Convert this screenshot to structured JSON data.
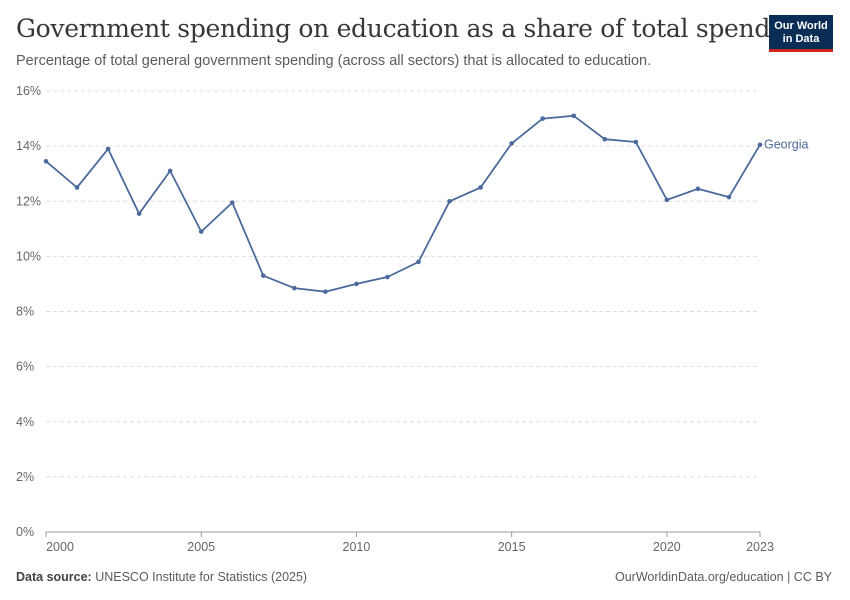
{
  "header": {
    "title": "Government spending on education as a share of total spending",
    "subtitle": "Percentage of total general government spending (across all sectors) that is allocated to education.",
    "logo_line1": "Our World",
    "logo_line2": "in Data"
  },
  "footer": {
    "source_label": "Data source:",
    "source_text": " UNESCO Institute for Statistics (2025)",
    "right_text": "OurWorldinData.org/education | CC BY"
  },
  "colors": {
    "series": "#4c6a9c",
    "grid": "#dddddd",
    "axis_text": "#666666",
    "logo_bg": "#0a2d55",
    "logo_accent": "#ce261e"
  },
  "chart_data": {
    "type": "line",
    "title": "Government spending on education as a share of total spending",
    "xlabel": "",
    "ylabel": "",
    "xlim": [
      2000,
      2023
    ],
    "ylim": [
      0,
      16
    ],
    "yticks": [
      0,
      2,
      4,
      6,
      8,
      10,
      12,
      14,
      16
    ],
    "ytick_labels": [
      "0%",
      "2%",
      "4%",
      "6%",
      "8%",
      "10%",
      "12%",
      "14%",
      "16%"
    ],
    "xticks": [
      2000,
      2005,
      2010,
      2015,
      2020,
      2023
    ],
    "xtick_labels": [
      "2000",
      "2005",
      "2010",
      "2015",
      "2020",
      "2023"
    ],
    "grid": true,
    "series": [
      {
        "name": "Georgia",
        "x": [
          2000,
          2001,
          2002,
          2003,
          2004,
          2005,
          2006,
          2007,
          2008,
          2009,
          2010,
          2011,
          2012,
          2013,
          2014,
          2015,
          2016,
          2017,
          2018,
          2019,
          2020,
          2021,
          2022,
          2023
        ],
        "y": [
          13.45,
          12.5,
          13.9,
          11.55,
          13.1,
          10.9,
          11.95,
          9.3,
          8.85,
          8.72,
          9.0,
          9.25,
          9.8,
          12.0,
          12.5,
          14.1,
          15.0,
          15.1,
          14.25,
          14.15,
          12.05,
          12.45,
          12.15,
          14.05
        ]
      }
    ]
  }
}
